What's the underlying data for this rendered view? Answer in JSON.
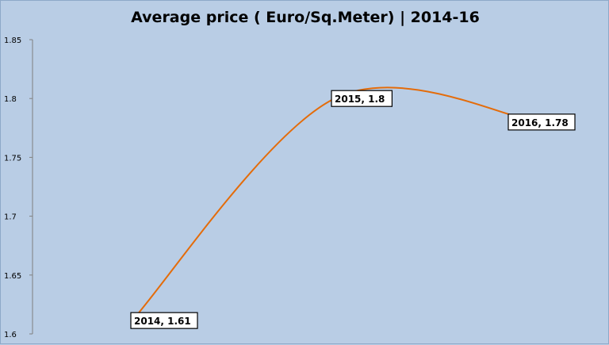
{
  "chart_data": {
    "type": "line",
    "title": "Average price ( Euro/Sq.Meter) | 2014-16",
    "xlabel": "",
    "ylabel": "",
    "x": [
      2014,
      2015,
      2016
    ],
    "series": [
      {
        "values": [
          1.61,
          1.8,
          1.78
        ],
        "color": "#e46c0a",
        "smoothed": true
      }
    ],
    "data_labels": [
      "2014, 1.61",
      "2015, 1.8",
      "2016, 1.78"
    ],
    "ylim": [
      1.6,
      1.85
    ],
    "yticks": [
      1.6,
      1.65,
      1.7,
      1.75,
      1.8,
      1.85
    ],
    "ytick_labels": [
      "1.6",
      "1.65",
      "1.7",
      "1.75",
      "1.8",
      "1.85"
    ],
    "grid": false,
    "legend": "none",
    "background_color": "#b9cde5"
  }
}
